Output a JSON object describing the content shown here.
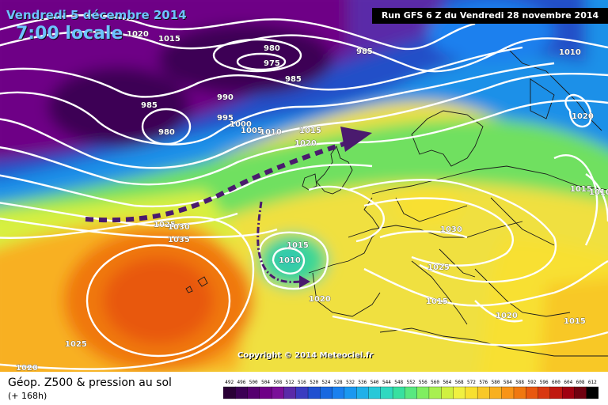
{
  "header": {
    "date": "Vendredi 5 décembre 2014",
    "time": "7:00 locale",
    "run": "Run GFS 6 Z du Vendredi 28 novembre 2014"
  },
  "copyright": "Copyright © 2014 Meteociel.fr",
  "footer": {
    "title": "Géop. Z500 & pression au sol",
    "lead": "(+ 168h)"
  },
  "scale": {
    "labels": [
      "492",
      "496",
      "500",
      "504",
      "508",
      "512",
      "516",
      "520",
      "524",
      "528",
      "532",
      "536",
      "540",
      "544",
      "548",
      "552",
      "556",
      "560",
      "564",
      "568",
      "572",
      "576",
      "580",
      "584",
      "588",
      "592",
      "596",
      "600",
      "604",
      "608",
      "612"
    ],
    "colors": [
      "#2a0036",
      "#3c0054",
      "#55006e",
      "#6e0086",
      "#7a1098",
      "#5a2aa8",
      "#3a3cc0",
      "#2050d0",
      "#1868e0",
      "#1a80ee",
      "#1a98f0",
      "#20b0e8",
      "#28c8d8",
      "#30d8c0",
      "#38e0a0",
      "#58e880",
      "#80ee60",
      "#a8f050",
      "#d0f040",
      "#f0f040",
      "#f8e030",
      "#f8c828",
      "#f8b020",
      "#f89418",
      "#f07810",
      "#e85810",
      "#d83810",
      "#c01810",
      "#a00010",
      "#700010",
      "#000000"
    ]
  },
  "isobars": [
    {
      "label": "1020",
      "color": "#ffffff"
    },
    {
      "label": "1015",
      "color": "#ffffff"
    },
    {
      "label": "980",
      "color": "#ffffff"
    },
    {
      "label": "975",
      "color": "#ffffff"
    },
    {
      "label": "985",
      "color": "#ffffff"
    },
    {
      "label": "985",
      "color": "#ffffff"
    },
    {
      "label": "1010",
      "color": "#ffffff"
    },
    {
      "label": "985",
      "color": "#ffffff"
    },
    {
      "label": "990",
      "color": "#ffffff"
    },
    {
      "label": "980",
      "color": "#ffffff"
    },
    {
      "label": "995",
      "color": "#ffffff"
    },
    {
      "label": "1000",
      "color": "#ffffff"
    },
    {
      "label": "1005",
      "color": "#ffffff"
    },
    {
      "label": "1010",
      "color": "#ffffff"
    },
    {
      "label": "1015",
      "color": "#ffffff"
    },
    {
      "label": "1020",
      "color": "#ffffff"
    },
    {
      "label": "1020",
      "color": "#ffffff"
    },
    {
      "label": "1015",
      "color": "#ffffff"
    },
    {
      "label": "1010",
      "color": "#ffffff"
    },
    {
      "label": "1025",
      "color": "#ffffff"
    },
    {
      "label": "1030",
      "color": "#ffffff"
    },
    {
      "label": "1035",
      "color": "#ffffff"
    },
    {
      "label": "1015",
      "color": "#ffffff"
    },
    {
      "label": "1010",
      "color": "#ffffff"
    },
    {
      "label": "1030",
      "color": "#ffffff"
    },
    {
      "label": "1025",
      "color": "#ffffff"
    },
    {
      "label": "1020",
      "color": "#ffffff"
    },
    {
      "label": "1015",
      "color": "#ffffff"
    },
    {
      "label": "1020",
      "color": "#ffffff"
    },
    {
      "label": "1015",
      "color": "#ffffff"
    },
    {
      "label": "1025",
      "color": "#ffffff"
    },
    {
      "label": "1020",
      "color": "#ffffff"
    }
  ]
}
